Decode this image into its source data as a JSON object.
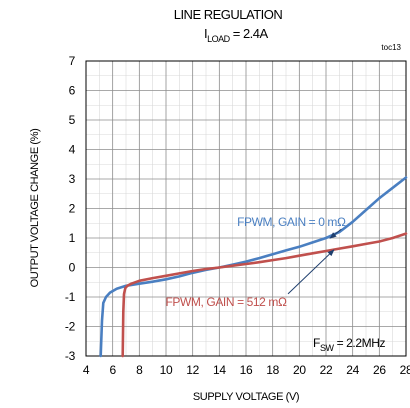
{
  "chart_data": {
    "type": "line",
    "title": "LINE REGULATION",
    "subtitle_main": "I",
    "subtitle_sub": "LOAD",
    "subtitle_rest": " = 2.4A",
    "figure_id": "toc13",
    "xlabel": "SUPPLY VOLTAGE (V)",
    "ylabel": "OUTPUT VOLTAGE CHANGE (%)",
    "xlim": [
      4,
      28
    ],
    "ylim": [
      -3,
      7
    ],
    "x_ticks": [
      4,
      6,
      8,
      10,
      12,
      14,
      16,
      18,
      20,
      22,
      24,
      26,
      28
    ],
    "x_tick_labels": [
      "4",
      "6",
      "8",
      "10",
      "12",
      "14",
      "16",
      "18",
      "20",
      "22",
      "24",
      "26",
      "28"
    ],
    "y_ticks": [
      -3,
      -2,
      -1,
      0,
      1,
      2,
      3,
      4,
      5,
      6,
      7
    ],
    "y_tick_labels": [
      "-3",
      "-2",
      "-1",
      "0",
      "1",
      "2",
      "3",
      "4",
      "5",
      "6",
      "7"
    ],
    "x_minor_step": 1,
    "y_minor_step": 0.5,
    "grid": true,
    "annotation": {
      "main": "F",
      "sub": "SW",
      "rest": " = 2.2MHz"
    },
    "series": [
      {
        "name": "FPWM, GAIN = 0 mΩ",
        "color": "#4a7fc1",
        "x": [
          5.1,
          5.2,
          5.3,
          5.5,
          5.8,
          6.3,
          7,
          8,
          9,
          10,
          11,
          12,
          13,
          14,
          15,
          16,
          17,
          18,
          19,
          20,
          21,
          22,
          23,
          24,
          25,
          26,
          27,
          28
        ],
        "y": [
          -3,
          -1.8,
          -1.2,
          -1.0,
          -0.85,
          -0.72,
          -0.62,
          -0.55,
          -0.48,
          -0.4,
          -0.3,
          -0.18,
          -0.08,
          0.0,
          0.1,
          0.2,
          0.32,
          0.45,
          0.58,
          0.7,
          0.85,
          1.0,
          1.2,
          1.55,
          1.95,
          2.35,
          2.7,
          3.05
        ]
      },
      {
        "name": "FPWM, GAIN = 512 mΩ",
        "color": "#c0504d",
        "x": [
          6.75,
          6.8,
          6.85,
          6.95,
          7.1,
          7.4,
          8,
          9,
          10,
          11,
          12,
          13,
          14,
          15,
          16,
          17,
          18,
          19,
          20,
          21,
          22,
          23,
          24,
          25,
          26,
          27,
          28
        ],
        "y": [
          -3,
          -1.5,
          -0.9,
          -0.7,
          -0.62,
          -0.55,
          -0.45,
          -0.36,
          -0.28,
          -0.2,
          -0.12,
          -0.05,
          0.0,
          0.06,
          0.12,
          0.18,
          0.25,
          0.32,
          0.4,
          0.48,
          0.56,
          0.64,
          0.72,
          0.8,
          0.88,
          1.0,
          1.15
        ]
      }
    ],
    "series_labels": [
      {
        "text": "FPWM, GAIN = 0 mΩ",
        "color": "#4a7fc1",
        "at": [
          19.4,
          1.4
        ],
        "arrow_to": [
          22.3,
          0.99
        ]
      },
      {
        "text": "FPWM, GAIN = 512 mΩ",
        "color": "#c0504d",
        "at": [
          14.5,
          -1.3
        ],
        "arrow_to": [
          22.6,
          0.6
        ]
      }
    ]
  }
}
